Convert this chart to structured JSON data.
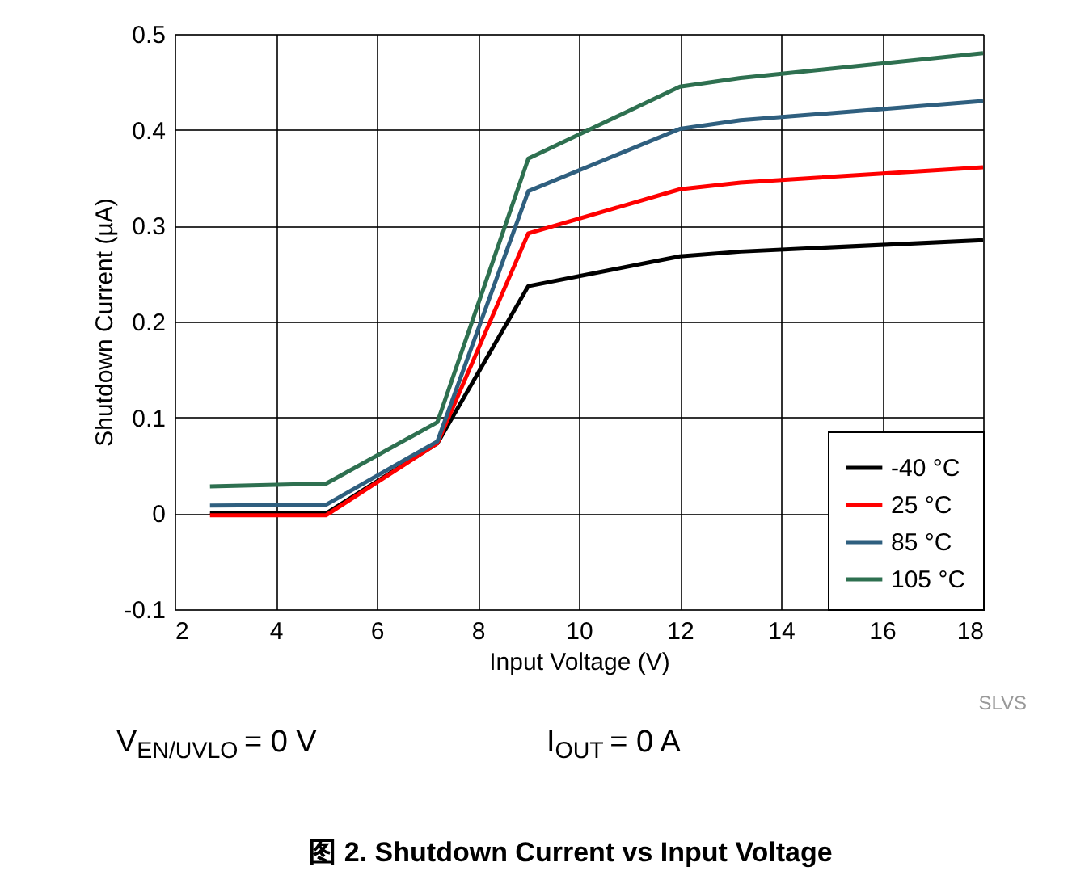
{
  "chart_data": {
    "type": "line",
    "title": "图 2. Shutdown Current vs Input Voltage",
    "xlabel": "Input Voltage (V)",
    "ylabel": "Shutdown Current (µA)",
    "x": [
      2.7,
      5,
      7.2,
      9,
      12,
      13.2,
      18
    ],
    "series": [
      {
        "name": "-40 °C",
        "color": "#000000",
        "values": [
          0.0,
          0.0,
          0.073,
          0.237,
          0.268,
          0.273,
          0.285
        ]
      },
      {
        "name": "25 °C",
        "color": "#ff0000",
        "values": [
          -0.002,
          -0.002,
          0.073,
          0.292,
          0.338,
          0.345,
          0.361
        ]
      },
      {
        "name": "85 °C",
        "color": "#2f5f7f",
        "values": [
          0.008,
          0.009,
          0.075,
          0.336,
          0.401,
          0.41,
          0.43
        ]
      },
      {
        "name": "105 °C",
        "color": "#2e7050",
        "values": [
          0.028,
          0.031,
          0.095,
          0.37,
          0.445,
          0.454,
          0.48
        ]
      }
    ],
    "xlim": [
      2,
      18
    ],
    "xticks": [
      2,
      4,
      6,
      8,
      10,
      12,
      14,
      16,
      18
    ],
    "ylim": [
      -0.1,
      0.5
    ],
    "yticks": [
      -0.1,
      0,
      0.1,
      0.2,
      0.3,
      0.4,
      0.5
    ],
    "grid": true,
    "legend": "bottom right",
    "marker": "none",
    "line_style": "solid",
    "annotations": [
      "V$_{EN/UVLO}$ = 0 V",
      "I$_{OUT}$ = 0 A",
      "SLVS"
    ]
  }
}
